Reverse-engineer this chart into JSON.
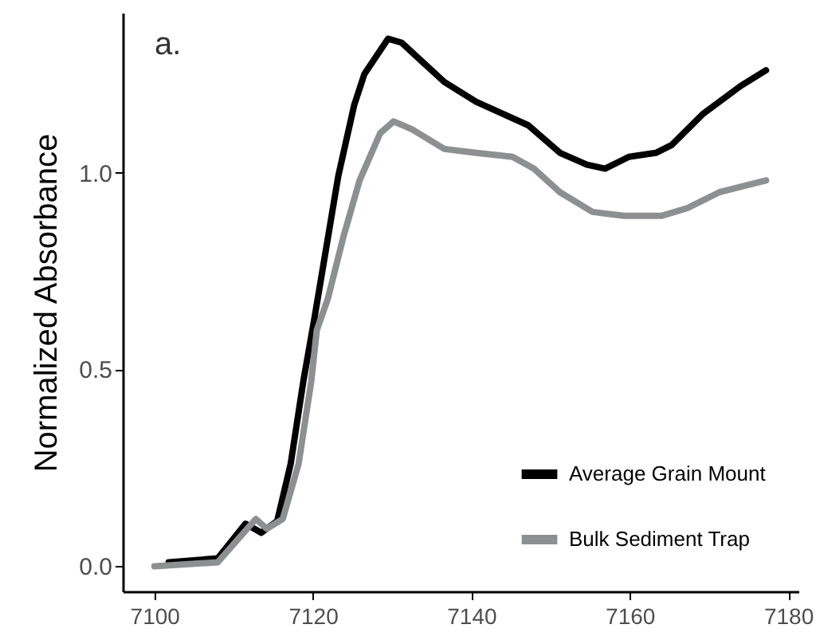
{
  "chart_data": {
    "type": "line",
    "ylabel": "Normalized Absorbance",
    "annotations": [
      "a."
    ],
    "xlim": [
      7096,
      7181.3
    ],
    "xticks": [
      7100,
      7120,
      7140,
      7160,
      7180
    ],
    "ylim": [
      -0.064,
      1.406
    ],
    "yticks": [
      {
        "value": 0,
        "label": "0.0"
      },
      {
        "value": 0.5,
        "label": "0.5"
      },
      {
        "value": 1,
        "label": "1.0"
      }
    ],
    "grid": false,
    "legend": "bottom right",
    "marker": "none",
    "line_style": "solid",
    "series": [
      {
        "name": "Average Grain Mount",
        "color": "#000000",
        "x": [
          7101.8,
          7108,
          7111.5,
          7113.5,
          7115.5,
          7117.2,
          7118.8,
          7120.2,
          7123.2,
          7125.2,
          7126.5,
          7129.5,
          7131.2,
          7133.9,
          7136.6,
          7140.6,
          7147.2,
          7151.2,
          7154.6,
          7156.9,
          7159.9,
          7163.3,
          7165.3,
          7169.3,
          7174,
          7177.2
        ],
        "values": [
          0.01,
          0.02,
          0.108,
          0.085,
          0.115,
          0.26,
          0.47,
          0.63,
          0.99,
          1.17,
          1.25,
          1.34,
          1.33,
          1.28,
          1.23,
          1.18,
          1.12,
          1.05,
          1.02,
          1.01,
          1.04,
          1.05,
          1.07,
          1.15,
          1.22,
          1.26
        ]
      },
      {
        "name": "Bulk Sediment Trap",
        "color": "#8c9090",
        "x": [
          7100,
          7108,
          7112.8,
          7114.2,
          7116.2,
          7118.2,
          7119.8,
          7120.5,
          7121.9,
          7123.9,
          7125.9,
          7128.5,
          7130.2,
          7132.5,
          7136.6,
          7140.6,
          7145.2,
          7147.9,
          7151.2,
          7155.3,
          7159.3,
          7164,
          7167.3,
          7171.3,
          7177.2
        ],
        "values": [
          0,
          0.01,
          0.12,
          0.095,
          0.12,
          0.26,
          0.47,
          0.6,
          0.68,
          0.84,
          0.98,
          1.1,
          1.13,
          1.11,
          1.06,
          1.05,
          1.04,
          1.01,
          0.95,
          0.9,
          0.89,
          0.89,
          0.91,
          0.95,
          0.98
        ]
      }
    ]
  }
}
